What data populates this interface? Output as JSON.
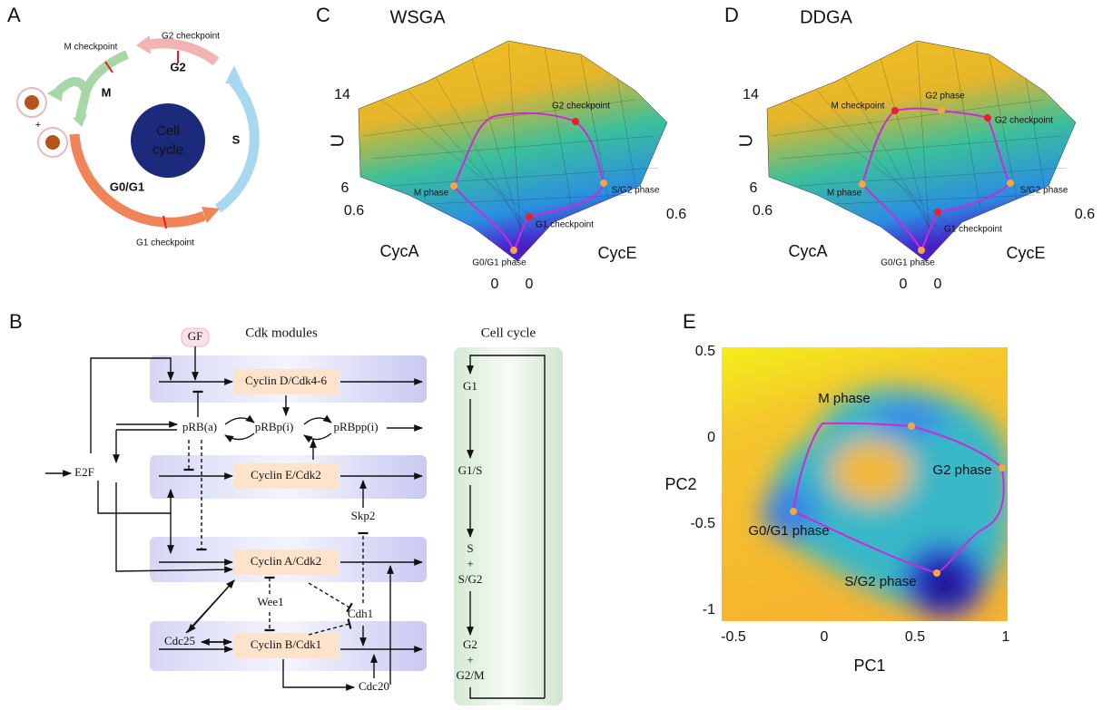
{
  "panel_labels": [
    "A",
    "B",
    "C",
    "D",
    "E"
  ],
  "a": {
    "center": [
      "Cell",
      "cycle"
    ],
    "phases": [
      "G2",
      "M",
      "S",
      "G0/G1"
    ],
    "checkpoints": [
      "M checkpoint",
      "G2 checkpoint",
      "G1 checkpoint"
    ],
    "plus": "+"
  },
  "c": {
    "title": "WSGA",
    "z_label": "U",
    "z_ticks": [
      "14",
      "6"
    ],
    "cyca_label": "CycA",
    "cyce_label": "CycE",
    "cyca_ticks": [
      "0.6",
      "0"
    ],
    "cyce_ticks": [
      "0.6",
      "0"
    ],
    "points": [
      "G2 checkpoint",
      "M phase",
      "S/G2 phase",
      "G1 checkpoint",
      "G0/G1 phase"
    ]
  },
  "d": {
    "title": "DDGA",
    "z_label": "U",
    "z_ticks": [
      "14",
      "6"
    ],
    "cyca_label": "CycA",
    "cyce_label": "CycE",
    "cyca_ticks": [
      "0.6",
      "0"
    ],
    "cyce_ticks": [
      "0.6",
      "0"
    ],
    "points": [
      "M checkpoint",
      "G2 phase",
      "G2 checkpoint",
      "M phase",
      "S/G2 phase",
      "G1 checkpoint",
      "G0/G1 phase"
    ]
  },
  "b": {
    "modules_title": "Cdk modules",
    "cell_cycle_title": "Cell cycle",
    "nodes": [
      "GF",
      "Cyclin D/Cdk4-6",
      "pRB(a)",
      "pRBp(i)",
      "pRBpp(i)",
      "E2F",
      "Cyclin E/Cdk2",
      "Skp2",
      "Cyclin A/Cdk2",
      "Wee1",
      "Cdh1",
      "Cdc25",
      "Cyclin B/Cdk1",
      "Cdc20"
    ],
    "stages": [
      [
        "G1"
      ],
      [
        "G1/S"
      ],
      [
        "S",
        "+",
        "S/G2"
      ],
      [
        "G2",
        "+",
        "G2/M"
      ]
    ]
  },
  "e": {
    "x_label": "PC1",
    "y_label": "PC2",
    "xticks": [
      -0.5,
      0,
      0.5,
      1
    ],
    "yticks": [
      0.5,
      0,
      -0.5,
      -1
    ],
    "points": [
      "M phase",
      "G2 phase",
      "G0/G1 phase",
      "S/G2 phase"
    ]
  }
}
